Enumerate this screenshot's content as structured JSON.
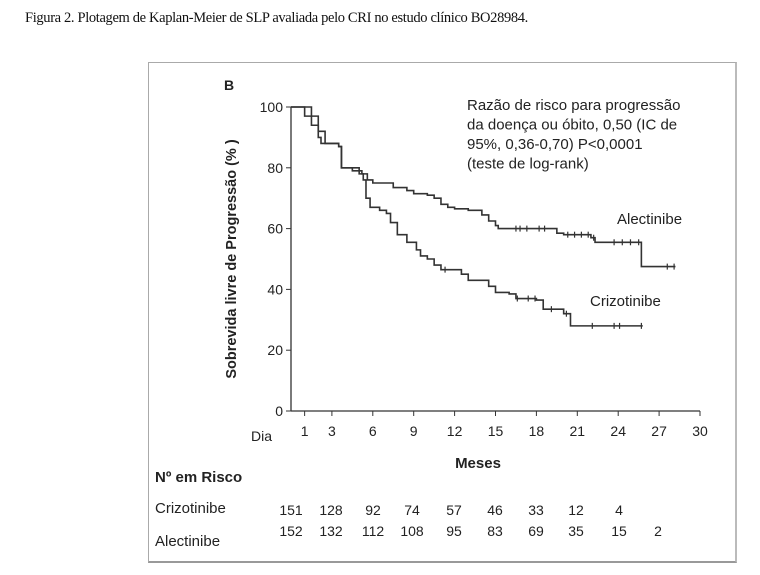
{
  "caption": "Figura 2. Plotagem de Kaplan-Meier de SLP avaliada pelo CRI no estudo clínico BO28984.",
  "chart_data": {
    "type": "line",
    "subtype": "kaplan-meier-step",
    "panel_label": "B",
    "xlabel": "Meses",
    "ylabel": "Sobrevida livre de Progressão (% )",
    "xlim": [
      0,
      30
    ],
    "ylim": [
      0,
      100
    ],
    "x_ticks": [
      "1",
      "3",
      "6",
      "9",
      "12",
      "15",
      "18",
      "21",
      "24",
      "27",
      "30"
    ],
    "x_tick_values": [
      1,
      3,
      6,
      9,
      12,
      15,
      18,
      21,
      24,
      27,
      30
    ],
    "x_origin_label": "Dia",
    "y_ticks": [
      0,
      20,
      40,
      60,
      80,
      100
    ],
    "annotation": [
      "Razão de risco para progressão",
      "da doença ou óbito, 0,50 (IC de",
      "95%, 0,36-0,70) P<0,0001",
      "(teste de log-rank)"
    ],
    "grid": false,
    "series": [
      {
        "name": "Alectinibe",
        "points": [
          [
            0,
            100
          ],
          [
            1,
            100
          ],
          [
            1.5,
            97
          ],
          [
            2,
            92
          ],
          [
            2.5,
            88
          ],
          [
            3.5,
            87
          ],
          [
            3.7,
            80
          ],
          [
            4.5,
            79
          ],
          [
            5.2,
            78
          ],
          [
            5.6,
            76
          ],
          [
            6,
            75
          ],
          [
            7.5,
            73.5
          ],
          [
            8.5,
            72.5
          ],
          [
            9,
            71.5
          ],
          [
            10,
            71
          ],
          [
            10.5,
            70
          ],
          [
            11,
            68
          ],
          [
            11.5,
            67
          ],
          [
            12,
            66.5
          ],
          [
            13,
            66
          ],
          [
            14,
            64.5
          ],
          [
            14.5,
            62.5
          ],
          [
            15,
            61
          ],
          [
            15.2,
            60
          ],
          [
            19,
            60
          ],
          [
            19.5,
            58.5
          ],
          [
            20,
            58
          ],
          [
            22,
            57
          ],
          [
            22.3,
            55.5
          ],
          [
            25.7,
            55.5
          ],
          [
            25.7,
            47.5
          ],
          [
            28.2,
            47.5
          ]
        ],
        "censored": [
          16.5,
          16.8,
          17.3,
          18.2,
          18.6,
          20.3,
          20.8,
          21.3,
          21.8,
          22.2,
          23.7,
          24.3,
          24.9,
          25.5,
          27.6,
          28.1
        ]
      },
      {
        "name": "Crizotinibe",
        "points": [
          [
            0,
            100
          ],
          [
            0.6,
            100
          ],
          [
            1,
            97
          ],
          [
            1.5,
            94
          ],
          [
            2,
            90
          ],
          [
            2.2,
            88
          ],
          [
            3.5,
            87
          ],
          [
            3.7,
            80
          ],
          [
            5,
            78
          ],
          [
            5.3,
            76
          ],
          [
            5.5,
            70
          ],
          [
            5.8,
            67
          ],
          [
            6.5,
            66
          ],
          [
            7,
            65
          ],
          [
            7.3,
            62
          ],
          [
            7.8,
            58
          ],
          [
            8.5,
            55.5
          ],
          [
            9.2,
            53
          ],
          [
            9.5,
            51
          ],
          [
            10,
            50
          ],
          [
            10.5,
            48
          ],
          [
            11,
            46.5
          ],
          [
            12.5,
            45
          ],
          [
            13,
            43
          ],
          [
            14.5,
            41
          ],
          [
            15,
            39
          ],
          [
            16,
            38.5
          ],
          [
            16.5,
            37
          ],
          [
            18,
            36.5
          ],
          [
            18.5,
            33.5
          ],
          [
            20,
            32
          ],
          [
            20.5,
            28
          ],
          [
            25.8,
            28
          ]
        ],
        "censored": [
          11.3,
          16.6,
          17.4,
          17.9,
          19.1,
          20.2,
          22.1,
          23.7,
          24.1,
          25.7
        ]
      }
    ],
    "risk_table": {
      "title": "Nº em Risco",
      "rows": [
        {
          "name": "Crizotinibe",
          "values": [
            "151",
            "128",
            "92",
            "74",
            "57",
            "46",
            "33",
            "12",
            "4"
          ]
        },
        {
          "name": "Alectinibe",
          "values": [
            "152",
            "132",
            "112",
            "108",
            "95",
            "83",
            "69",
            "35",
            "15",
            "2"
          ]
        }
      ]
    }
  }
}
